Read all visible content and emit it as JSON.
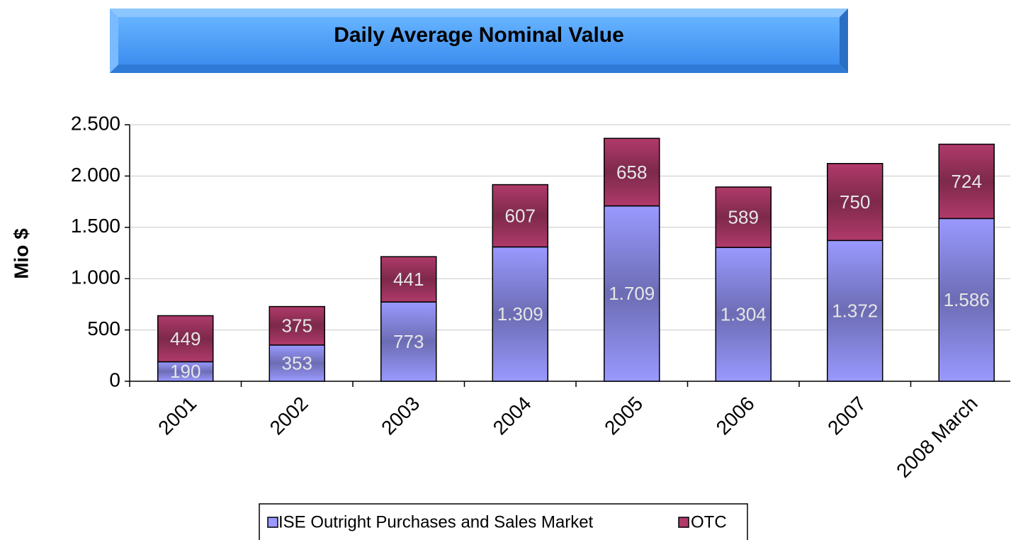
{
  "chart_data": {
    "type": "bar",
    "stacked": true,
    "title": "Daily Average Nominal Value",
    "y_label": "Mio $",
    "categories": [
      "2001",
      "2002",
      "2003",
      "2004",
      "2005",
      "2006",
      "2007",
      "2008 March"
    ],
    "series": [
      {
        "name": "ISE Outright Purchases and Sales Market",
        "color": "#9999ff",
        "values": [
          190,
          353,
          773,
          1309,
          1709,
          1304,
          1372,
          1586
        ],
        "value_labels": [
          "190",
          "353",
          "773",
          "1.309",
          "1.709",
          "1.304",
          "1.372",
          "1.586"
        ]
      },
      {
        "name": "OTC",
        "color": "#b03a6a",
        "values": [
          449,
          375,
          441,
          607,
          658,
          589,
          750,
          724
        ]
      }
    ],
    "ylim": [
      0,
      2500
    ],
    "yticks": [
      0,
      500,
      {
        "value": 1000,
        "label": "1.000"
      },
      {
        "value": 1500,
        "label": "1.500"
      },
      {
        "value": 2000,
        "label": "2.000"
      },
      {
        "value": 2500,
        "label": "2.500"
      }
    ],
    "grid": true,
    "legend": "bottom"
  }
}
